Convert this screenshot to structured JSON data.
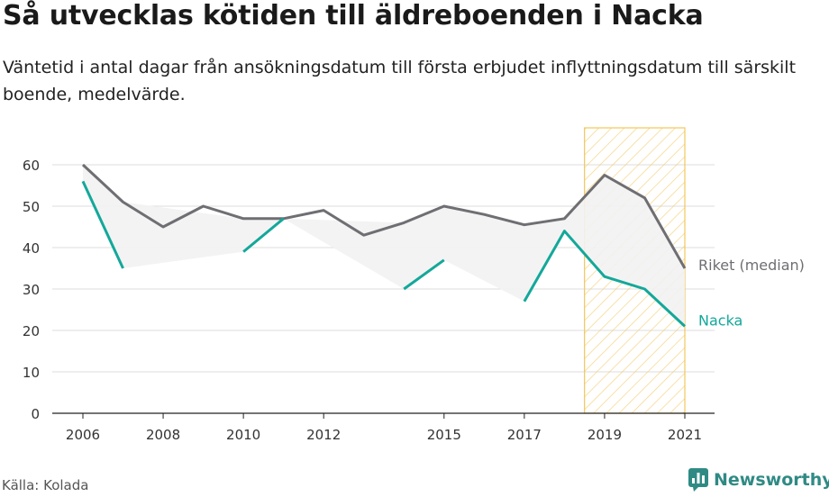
{
  "header": {
    "title": "Så utvecklas kötiden till äldreboenden i Nacka",
    "subtitle": "Väntetid i antal dagar från ansökningsdatum till första erbjudet inflyttningsdatum till särskilt boende, medelvärde."
  },
  "footer": {
    "source": "Källa: Kolada",
    "brand": "Newsworthy",
    "brand_icon": "newsworthy-logo-icon"
  },
  "colors": {
    "riket": "#6e6e73",
    "nacka": "#13a89a",
    "range_fill": "#f2f2f2",
    "highlight_stroke": "#f2c75c",
    "grid": "#dddddd"
  },
  "chart_data": {
    "type": "line",
    "x": [
      2006,
      2007,
      2008,
      2009,
      2010,
      2011,
      2012,
      2013,
      2014,
      2015,
      2016,
      2017,
      2018,
      2019,
      2020,
      2021
    ],
    "x_ticks": [
      "2006",
      "2008",
      "2010",
      "2012",
      "2015",
      "2017",
      "2019",
      "2021"
    ],
    "y_ticks": [
      "0",
      "10",
      "20",
      "30",
      "40",
      "50",
      "60"
    ],
    "ylim": [
      0,
      65
    ],
    "grid": true,
    "highlight_range": [
      2018.5,
      2021
    ],
    "series": [
      {
        "name": "Riket (median)",
        "values": [
          60,
          51,
          45,
          50,
          47,
          47,
          49,
          43,
          46,
          50,
          48,
          45.5,
          47,
          57.5,
          52,
          35
        ]
      },
      {
        "name": "Nacka",
        "values": [
          56,
          35,
          null,
          null,
          39,
          47,
          null,
          null,
          30,
          37,
          null,
          27,
          44,
          33,
          30,
          21
        ]
      }
    ]
  }
}
